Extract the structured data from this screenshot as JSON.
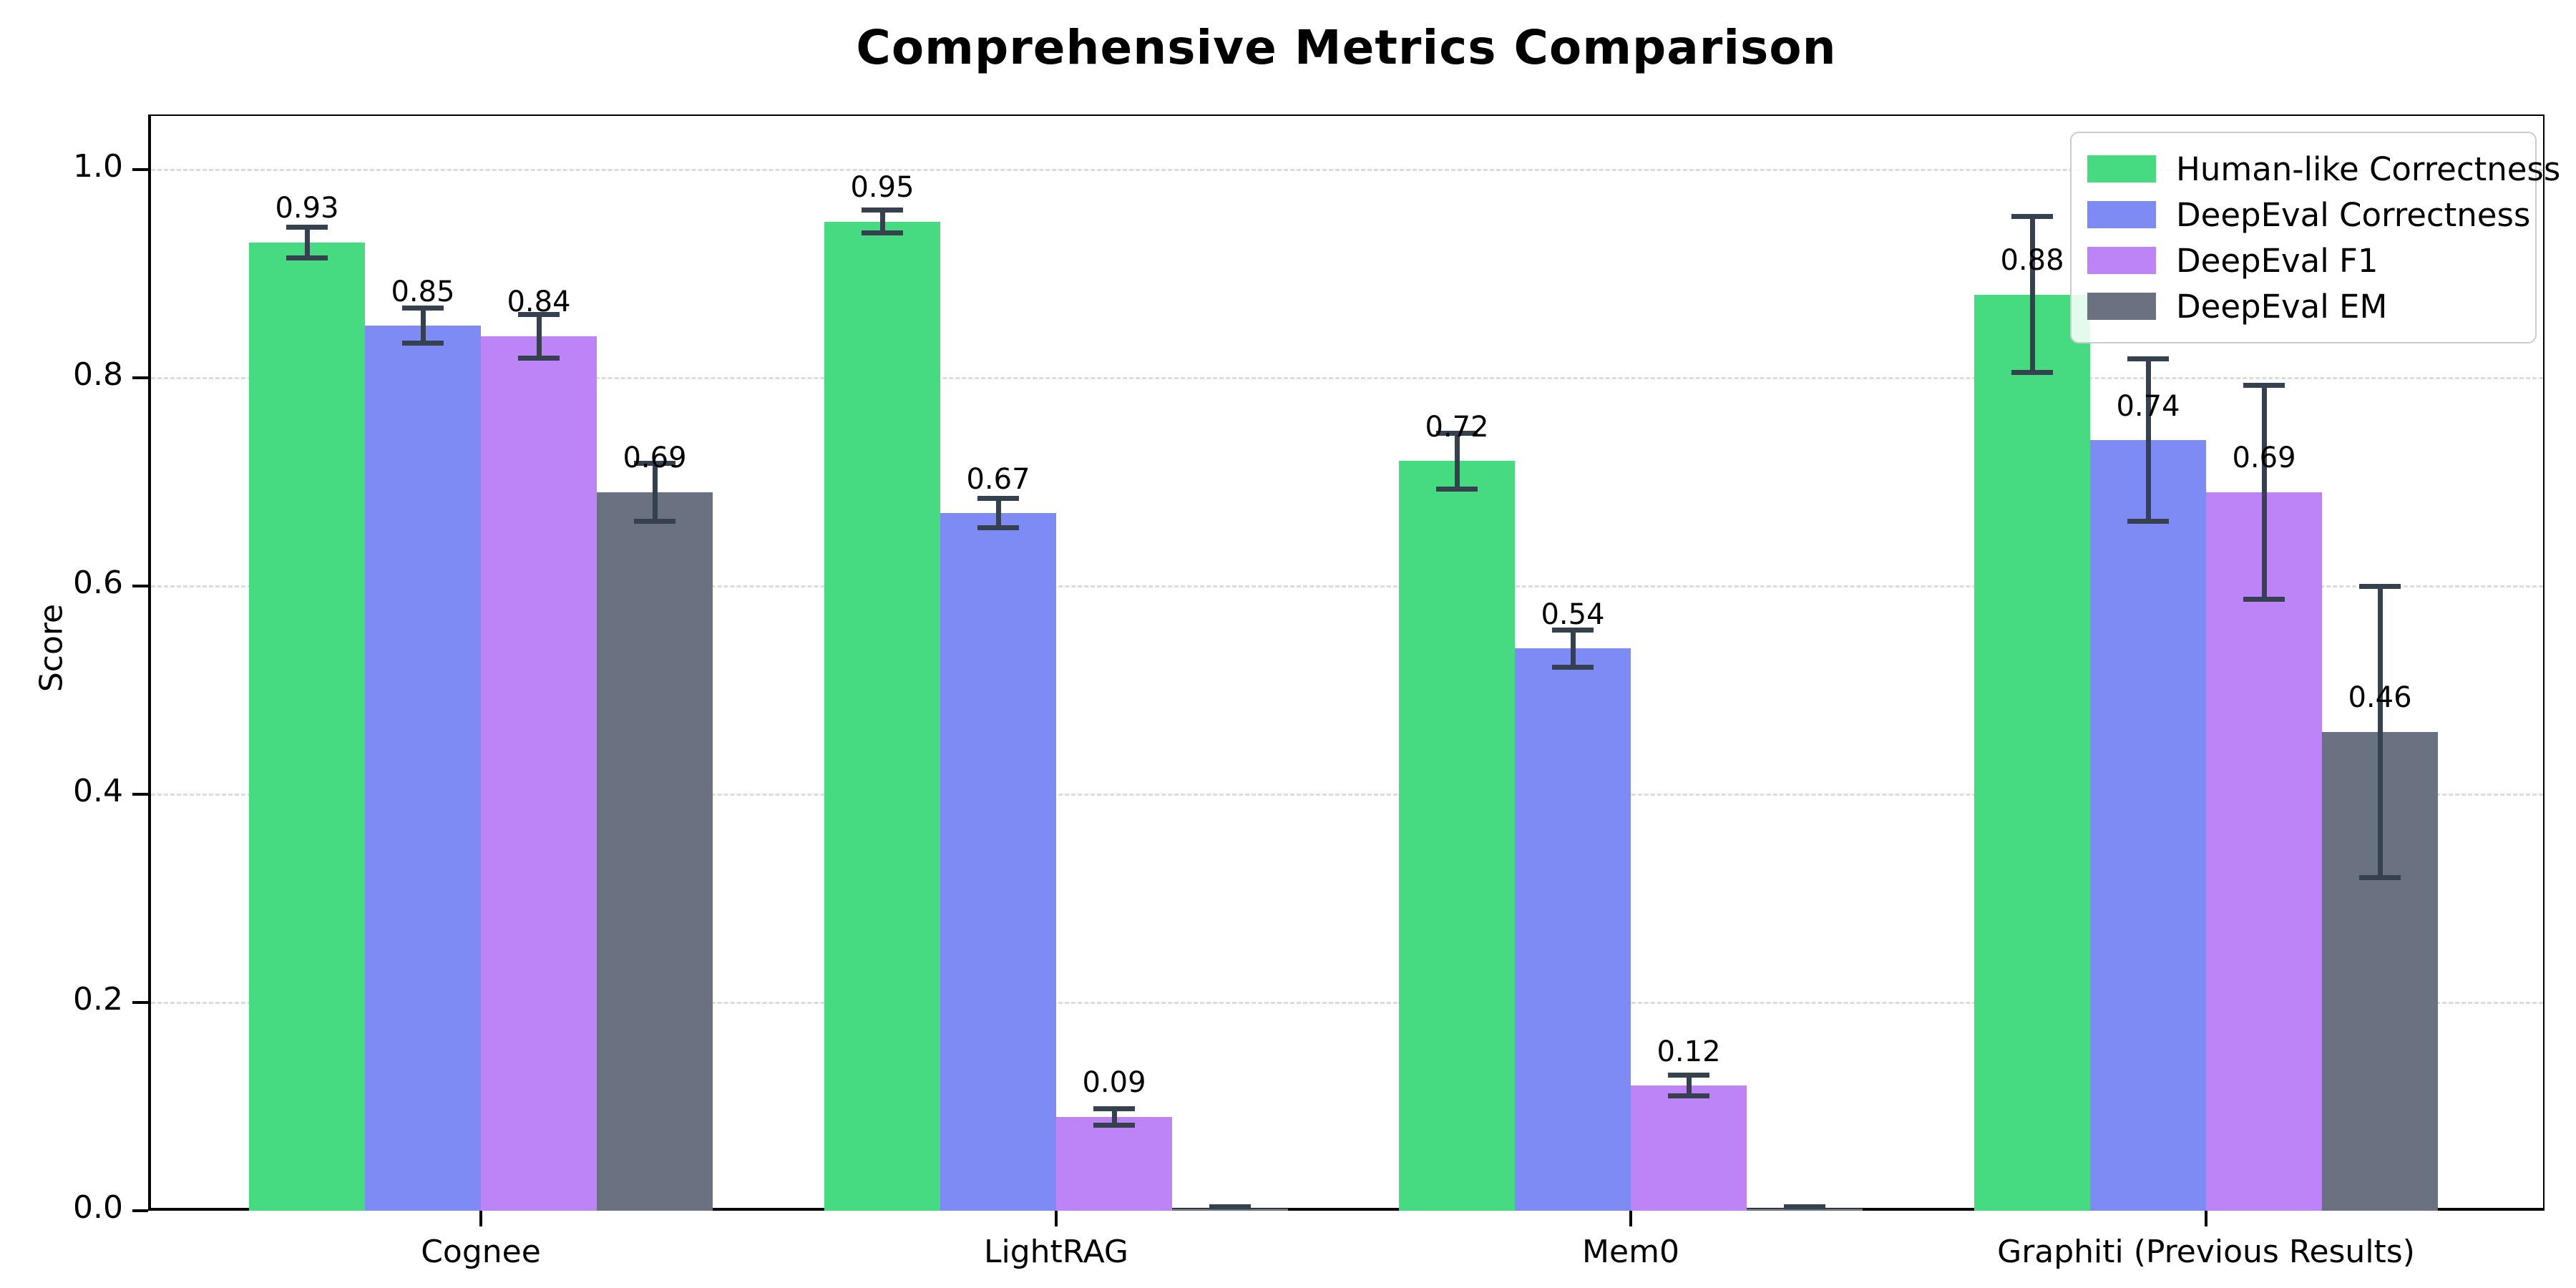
{
  "title": "Comprehensive Metrics Comparison",
  "chart_data": {
    "type": "bar",
    "title": "Comprehensive Metrics Comparison",
    "xlabel": "",
    "ylabel": "Score",
    "categories": [
      "Cognee",
      "LightRAG",
      "Mem0",
      "Graphiti (Previous Results)"
    ],
    "y_ticks": [
      {
        "value": 0.0,
        "label": "0.0"
      },
      {
        "value": 0.2,
        "label": "0.2"
      },
      {
        "value": 0.4,
        "label": "0.4"
      },
      {
        "value": 0.6,
        "label": "0.6"
      },
      {
        "value": 0.8,
        "label": "0.8"
      },
      {
        "value": 1.0,
        "label": "1.0"
      }
    ],
    "ylim": [
      0,
      1.053
    ],
    "grid": "horizontal-dashed",
    "legend_position": "upper right",
    "series": [
      {
        "name": "Human-like Correctness",
        "color": "#46da81",
        "values": [
          0.93,
          0.95,
          0.72,
          0.88
        ],
        "errors": [
          0.015,
          0.011,
          0.027,
          0.075
        ],
        "labels": [
          "0.93",
          "0.95",
          "0.72",
          "0.88"
        ]
      },
      {
        "name": "DeepEval Correctness",
        "color": "#7e8bf5",
        "values": [
          0.85,
          0.67,
          0.54,
          0.74
        ],
        "errors": [
          0.017,
          0.014,
          0.018,
          0.078
        ],
        "labels": [
          "0.85",
          "0.67",
          "0.54",
          "0.74"
        ]
      },
      {
        "name": "DeepEval F1",
        "color": "#bd84f8",
        "values": [
          0.84,
          0.09,
          0.12,
          0.69
        ],
        "errors": [
          0.021,
          0.008,
          0.01,
          0.103
        ],
        "labels": [
          "0.84",
          "0.09",
          "0.12",
          "0.69"
        ]
      },
      {
        "name": "DeepEval EM",
        "color": "#6a7181",
        "values": [
          0.69,
          0.0,
          0.0,
          0.46
        ],
        "errors": [
          0.028,
          0.004,
          0.004,
          0.14
        ],
        "labels": [
          "0.69",
          null,
          null,
          "0.46"
        ]
      }
    ],
    "error_bar_color": "#364150",
    "grid_color": "#dcdcdc",
    "axis_color": "#000000",
    "legend_border_color": "#cccccc",
    "label_offset": 0.03
  }
}
